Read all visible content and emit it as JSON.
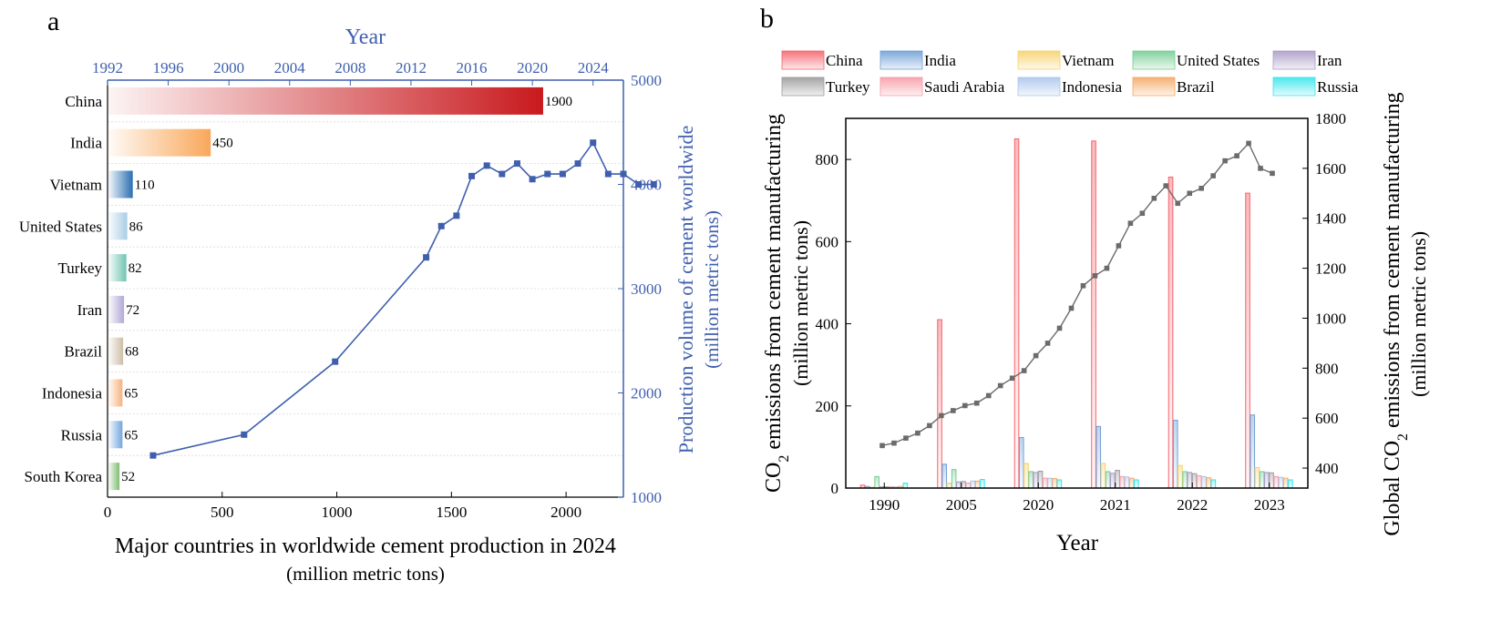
{
  "chart_data": [
    {
      "panel": "a",
      "type": "bar",
      "orientation": "horizontal",
      "categories": [
        "China",
        "India",
        "Vietnam",
        "United States",
        "Turkey",
        "Iran",
        "Brazil",
        "Indonesia",
        "Russia",
        "South Korea"
      ],
      "values": [
        1900,
        450,
        110,
        86,
        82,
        72,
        68,
        65,
        65,
        52
      ],
      "bar_colors": [
        "#c8191d",
        "#f9a75a",
        "#2a6fb1",
        "#a8cde3",
        "#6fc4b2",
        "#b3a8d6",
        "#cdbfa8",
        "#f6b37f",
        "#74a6dc",
        "#7fbd72"
      ],
      "xlabel": "Major countries in worldwide cement production in 2024",
      "xlabel_unit": "(million metric tons)",
      "xlim": [
        0,
        2250
      ],
      "xticks": [
        0,
        500,
        1000,
        1500,
        2000
      ],
      "top_axis": {
        "title": "Year",
        "ticks": [
          1992,
          1996,
          2000,
          2004,
          2008,
          2012,
          2016,
          2020,
          2024
        ],
        "range": [
          1992,
          2026
        ]
      },
      "right_axis": {
        "label": "Production volume of cement worldwide",
        "label_unit": "(million metric tons)",
        "ticks": [
          1000,
          2000,
          3000,
          4000,
          5000
        ],
        "range": [
          1000,
          5000
        ]
      },
      "line_series": {
        "color": "#3f5fae",
        "x": [
          1995,
          2001,
          2007,
          2013,
          2014,
          2015,
          2016,
          2017,
          2018,
          2019,
          2020,
          2021,
          2022,
          2023,
          2024,
          2025,
          2026,
          2027,
          2028
        ],
        "y": [
          1400,
          1600,
          2300,
          3300,
          3600,
          3700,
          4080,
          4180,
          4100,
          4200,
          4050,
          4100,
          4100,
          4200,
          4400,
          4100,
          4100,
          4000,
          4000
        ]
      }
    },
    {
      "panel": "b",
      "type": "bar",
      "categories": [
        "1990",
        "2005",
        "2020",
        "2021",
        "2022",
        "2023"
      ],
      "xlabel": "Year",
      "ylabel": "CO2 emissions from cement manufacturing",
      "ylabel_parts": {
        "pre": "CO",
        "sub": "2",
        "post": " emissions from cement manufacturing"
      },
      "ylabel_unit": "(million metric tons)",
      "ylim": [
        0,
        900
      ],
      "yticks": [
        0,
        200,
        400,
        600,
        800
      ],
      "series": [
        {
          "name": "China",
          "color": "#f4646c",
          "values": [
            7,
            410,
            850,
            845,
            757,
            718
          ]
        },
        {
          "name": "India",
          "color": "#6f9fd6",
          "values": [
            4,
            58,
            123,
            150,
            165,
            178
          ]
        },
        {
          "name": "Vietnam",
          "color": "#f7d26a",
          "values": [
            2,
            12,
            60,
            60,
            55,
            50
          ]
        },
        {
          "name": "United States",
          "color": "#74cc93",
          "values": [
            28,
            45,
            40,
            40,
            40,
            40
          ]
        },
        {
          "name": "Iran",
          "color": "#a99ac7",
          "values": [
            3,
            15,
            38,
            36,
            38,
            38
          ]
        },
        {
          "name": "Turkey",
          "color": "#9a9a9a",
          "values": [
            3,
            16,
            41,
            43,
            35,
            37
          ]
        },
        {
          "name": "Saudi Arabia",
          "color": "#f79aa6",
          "values": [
            3,
            12,
            24,
            28,
            30,
            28
          ]
        },
        {
          "name": "Indonesia",
          "color": "#a9c5ec",
          "values": [
            3,
            17,
            24,
            27,
            28,
            26
          ]
        },
        {
          "name": "Brazil",
          "color": "#f4a864",
          "values": [
            4,
            17,
            23,
            24,
            25,
            24
          ]
        },
        {
          "name": "Russia",
          "color": "#38e5ec",
          "values": [
            12,
            21,
            20,
            20,
            20,
            20
          ]
        }
      ],
      "right_axis": {
        "label": "Global CO2 emissions from cement manufacturing",
        "label_parts": {
          "pre": "Global CO",
          "sub": "2",
          "post": " emissions from cement manufacturing"
        },
        "label_unit": "(million metric tons)",
        "ticks": [
          400,
          600,
          800,
          1000,
          1200,
          1400,
          1600,
          1800
        ],
        "range": [
          320,
          1800
        ]
      },
      "line_series": {
        "color": "#6b6b6b",
        "x_start": 1990,
        "x_end": 2023,
        "y": [
          490,
          500,
          520,
          540,
          570,
          610,
          630,
          650,
          660,
          690,
          730,
          760,
          790,
          850,
          900,
          960,
          1040,
          1130,
          1170,
          1200,
          1290,
          1380,
          1420,
          1480,
          1530,
          1460,
          1500,
          1520,
          1570,
          1630,
          1650,
          1700,
          1600,
          1580
        ]
      }
    }
  ],
  "page": {
    "panel_a_letter": "a",
    "panel_b_letter": "b",
    "legend_columns": [
      0,
      1,
      2,
      3,
      4
    ]
  }
}
